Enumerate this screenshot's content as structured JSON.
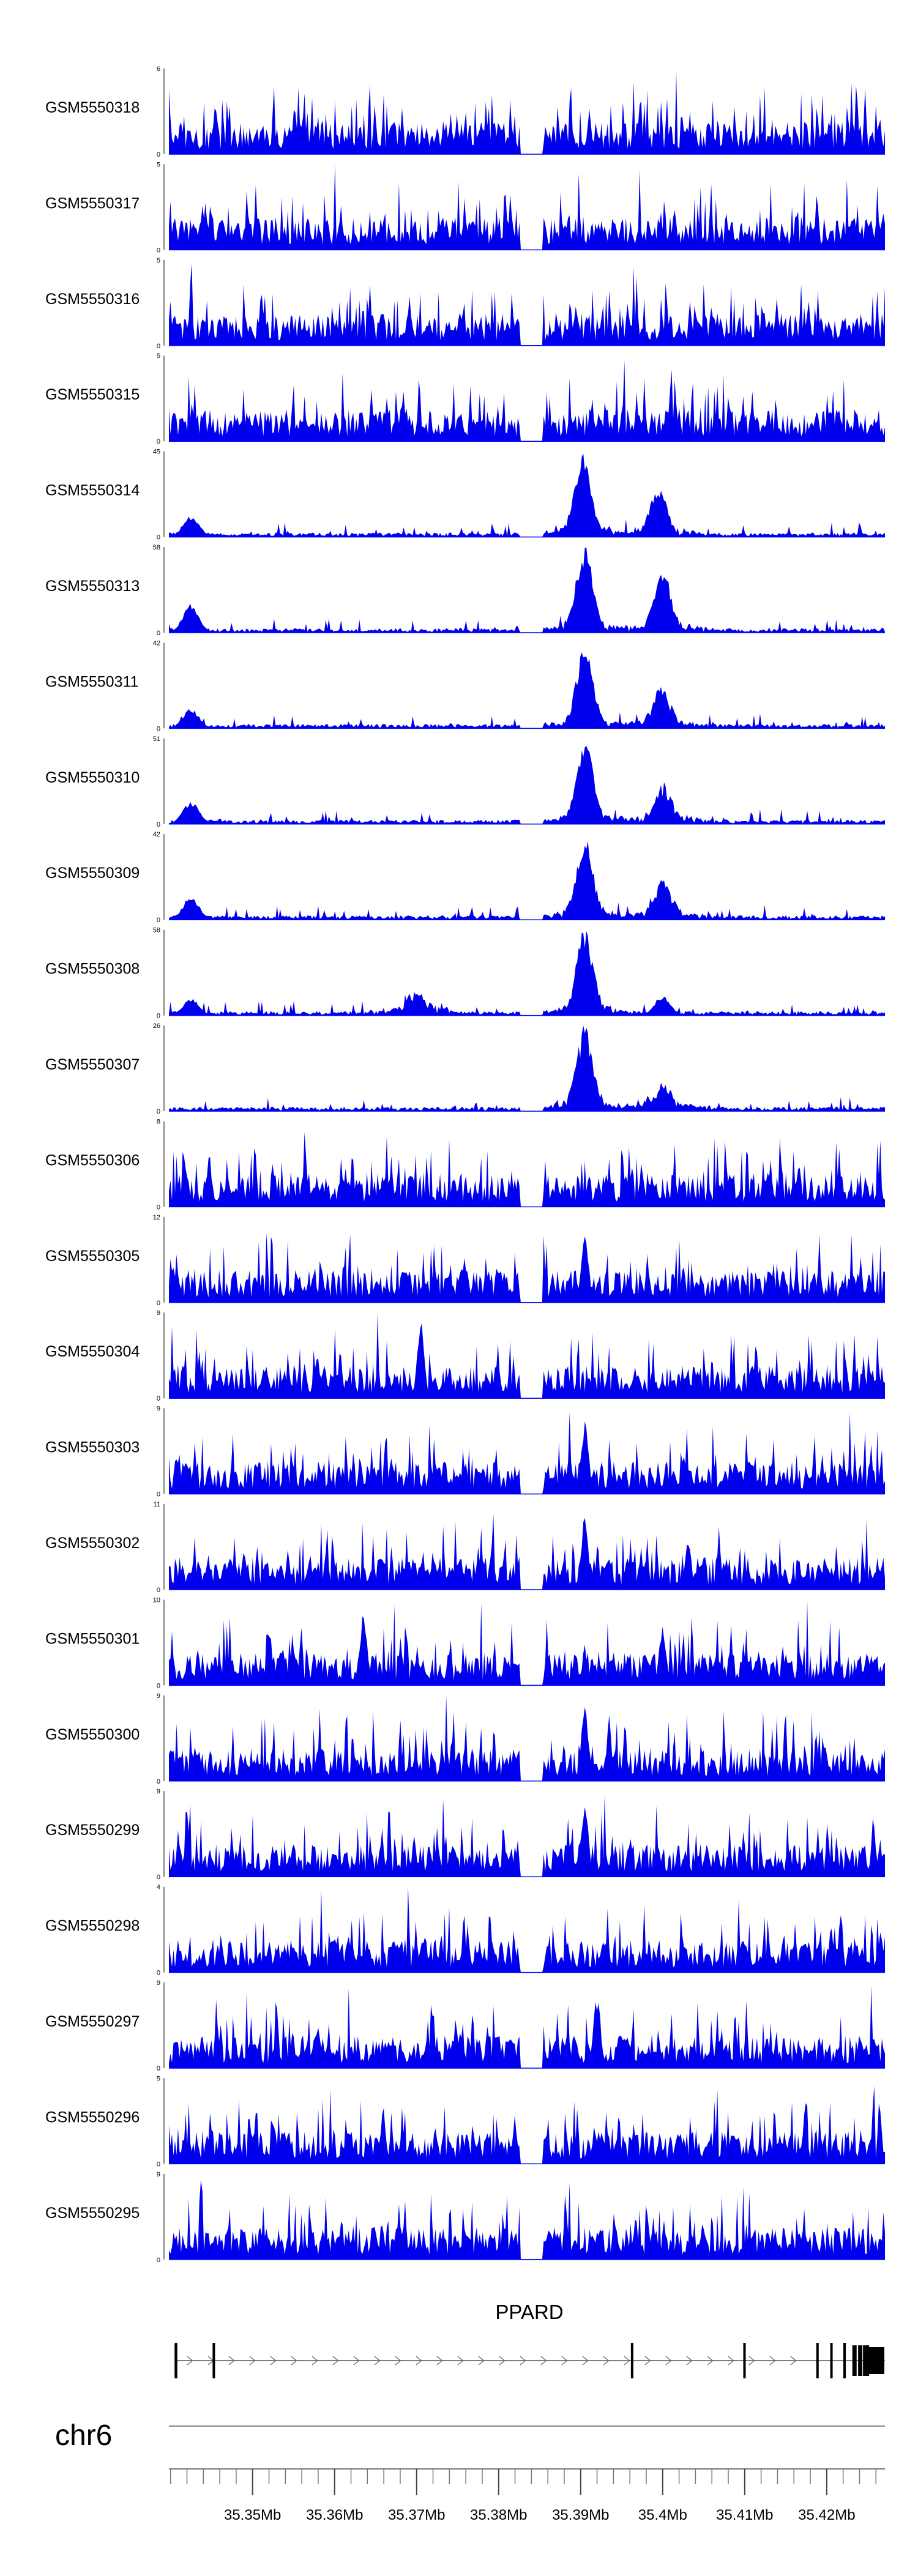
{
  "colors": {
    "signal": "#0000ee",
    "axis": "#000000",
    "chrom_line": "#888888",
    "background": "#ffffff"
  },
  "chart_data": {
    "type": "area",
    "tracks": [
      {
        "name": "GSM5550318",
        "ymin": 0,
        "ymax": 6,
        "pattern": "noise",
        "peaks": []
      },
      {
        "name": "GSM5550317",
        "ymin": 0,
        "ymax": 5,
        "pattern": "noise",
        "peaks": []
      },
      {
        "name": "GSM5550316",
        "ymin": 0,
        "ymax": 5,
        "pattern": "noise",
        "peaks": []
      },
      {
        "name": "GSM5550315",
        "ymin": 0,
        "ymax": 5,
        "pattern": "noise",
        "peaks": []
      },
      {
        "name": "GSM5550314",
        "ymin": 0,
        "ymax": 45,
        "pattern": "peaks",
        "peaks": [
          [
            35.3903,
            42
          ],
          [
            35.3995,
            24
          ],
          [
            35.3425,
            12
          ]
        ]
      },
      {
        "name": "GSM5550313",
        "ymin": 0,
        "ymax": 58,
        "pattern": "peaks",
        "peaks": [
          [
            35.3905,
            55
          ],
          [
            35.4,
            40
          ],
          [
            35.3425,
            20
          ]
        ]
      },
      {
        "name": "GSM5550311",
        "ymin": 0,
        "ymax": 42,
        "pattern": "peaks",
        "peaks": [
          [
            35.3905,
            40
          ],
          [
            35.3998,
            18
          ],
          [
            35.3425,
            10
          ]
        ]
      },
      {
        "name": "GSM5550310",
        "ymin": 0,
        "ymax": 51,
        "pattern": "peaks",
        "peaks": [
          [
            35.3905,
            48
          ],
          [
            35.4,
            20
          ],
          [
            35.3425,
            14
          ]
        ]
      },
      {
        "name": "GSM5550309",
        "ymin": 0,
        "ymax": 42,
        "pattern": "peaks",
        "peaks": [
          [
            35.3905,
            40
          ],
          [
            35.4,
            18
          ],
          [
            35.3425,
            12
          ]
        ]
      },
      {
        "name": "GSM5550308",
        "ymin": 0,
        "ymax": 58,
        "pattern": "peaks",
        "peaks": [
          [
            35.3905,
            56
          ],
          [
            35.37,
            14
          ],
          [
            35.4,
            14
          ],
          [
            35.3425,
            12
          ]
        ]
      },
      {
        "name": "GSM5550307",
        "ymin": 0,
        "ymax": 26,
        "pattern": "peaks",
        "peaks": [
          [
            35.3905,
            25
          ],
          [
            35.4,
            6
          ]
        ]
      },
      {
        "name": "GSM5550306",
        "ymin": 0,
        "ymax": 8,
        "pattern": "noise",
        "peaks": []
      },
      {
        "name": "GSM5550305",
        "ymin": 0,
        "ymax": 12,
        "pattern": "noise",
        "peaks": [
          [
            35.3905,
            11
          ]
        ]
      },
      {
        "name": "GSM5550304",
        "ymin": 0,
        "ymax": 9,
        "pattern": "noise",
        "peaks": [
          [
            35.3705,
            8.5
          ]
        ]
      },
      {
        "name": "GSM5550303",
        "ymin": 0,
        "ymax": 9,
        "pattern": "noise",
        "peaks": [
          [
            35.3905,
            8
          ]
        ]
      },
      {
        "name": "GSM5550302",
        "ymin": 0,
        "ymax": 11,
        "pattern": "noise",
        "peaks": [
          [
            35.3905,
            10
          ]
        ]
      },
      {
        "name": "GSM5550301",
        "ymin": 0,
        "ymax": 10,
        "pattern": "noise",
        "peaks": [
          [
            35.3635,
            9
          ],
          [
            35.4,
            7
          ]
        ]
      },
      {
        "name": "GSM5550300",
        "ymin": 0,
        "ymax": 9,
        "pattern": "noise",
        "peaks": [
          [
            35.3905,
            9
          ]
        ]
      },
      {
        "name": "GSM5550299",
        "ymin": 0,
        "ymax": 9,
        "pattern": "noise",
        "peaks": [
          [
            35.3905,
            8.5
          ]
        ]
      },
      {
        "name": "GSM5550298",
        "ymin": 0,
        "ymax": 4,
        "pattern": "noise",
        "peaks": []
      },
      {
        "name": "GSM5550297",
        "ymin": 0,
        "ymax": 9,
        "pattern": "noise",
        "peaks": [
          [
            35.392,
            8
          ]
        ]
      },
      {
        "name": "GSM5550296",
        "ymin": 0,
        "ymax": 5,
        "pattern": "noise",
        "peaks": []
      },
      {
        "name": "GSM5550295",
        "ymin": 0,
        "ymax": 9,
        "pattern": "noise",
        "peaks": []
      }
    ],
    "x_range": [
      35.3398,
      35.4271
    ],
    "dip": [
      35.3826,
      35.3854
    ],
    "gene": {
      "name": "PPARD",
      "strand": "+",
      "tss": 35.3406,
      "end": 35.4271,
      "exons": [
        35.3406,
        35.3452,
        35.3962,
        35.4099,
        35.4188,
        35.4205,
        35.4221,
        35.4232,
        35.4239,
        35.4245,
        35.4252
      ]
    },
    "chromosome": "chr6",
    "x_ticks": [
      {
        "value": 35.35,
        "label": "35.35Mb"
      },
      {
        "value": 35.36,
        "label": "35.36Mb"
      },
      {
        "value": 35.37,
        "label": "35.37Mb"
      },
      {
        "value": 35.38,
        "label": "35.38Mb"
      },
      {
        "value": 35.39,
        "label": "35.39Mb"
      },
      {
        "value": 35.4,
        "label": "35.4Mb"
      },
      {
        "value": 35.41,
        "label": "35.41Mb"
      },
      {
        "value": 35.42,
        "label": "35.42Mb"
      }
    ],
    "minor_tick_step": 0.002
  }
}
